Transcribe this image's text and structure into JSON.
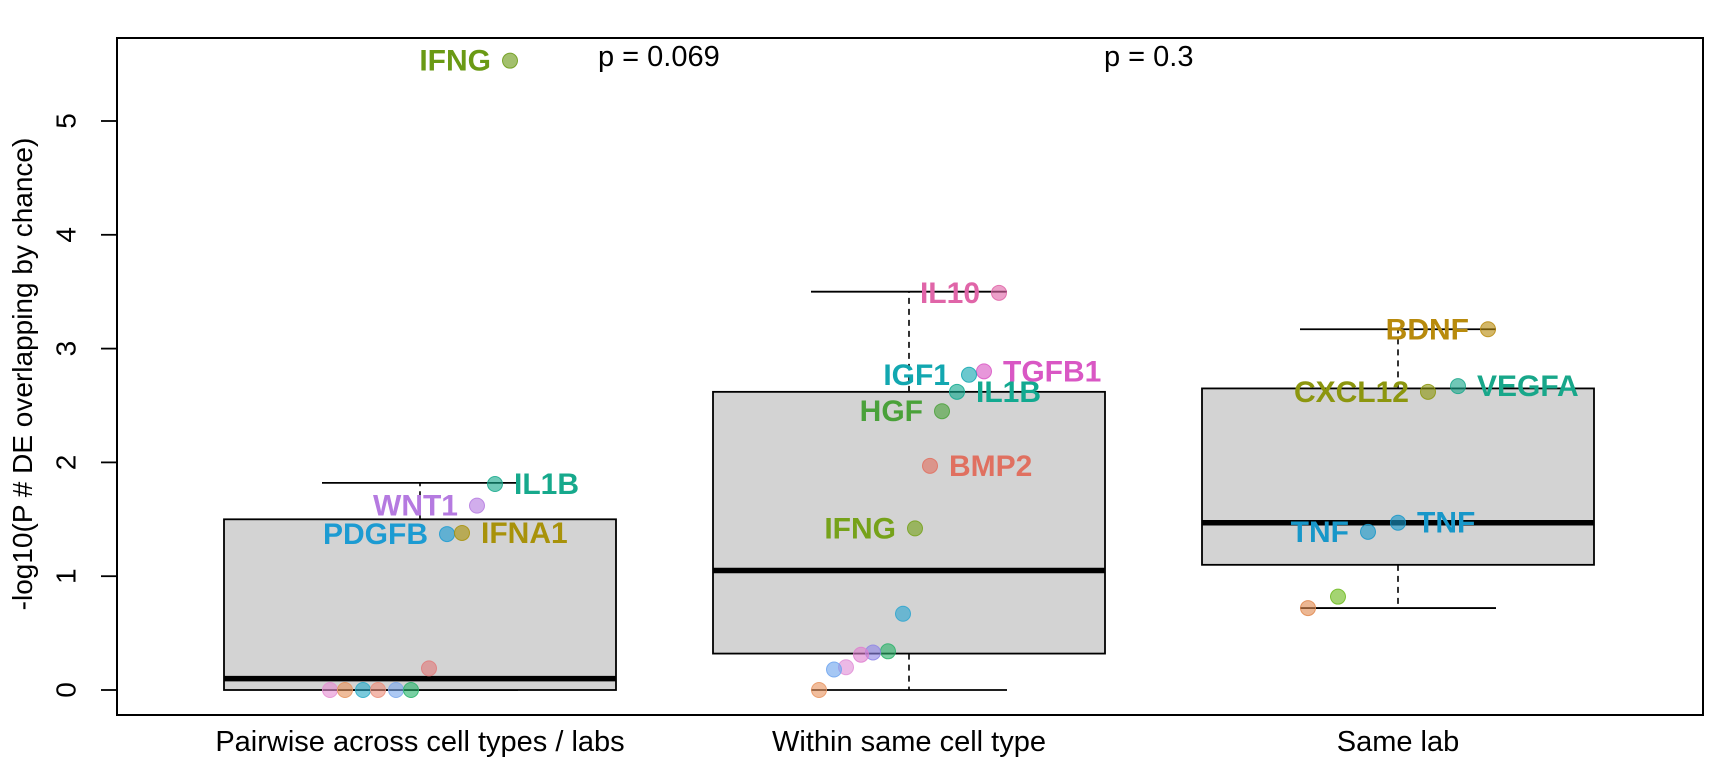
{
  "chart_data": {
    "type": "boxplot",
    "ylabel": "-log10(P # DE overlapping by chance)",
    "xlabel": "",
    "ylim": [
      -0.2,
      5.75
    ],
    "yticks": [
      "0",
      "1",
      "2",
      "3",
      "4",
      "5"
    ],
    "grid": false,
    "categories": [
      "Pairwise across cell types / labs",
      "Within same cell type",
      "Same lab"
    ],
    "boxes": [
      {
        "q1": 0.0,
        "median": 0.1,
        "q3": 1.5,
        "whisker_low": 0.0,
        "whisker_high": 1.82
      },
      {
        "q1": 0.32,
        "median": 1.05,
        "q3": 2.62,
        "whisker_low": 0.0,
        "whisker_high": 3.5
      },
      {
        "q1": 1.1,
        "median": 1.47,
        "q3": 2.65,
        "whisker_low": 0.72,
        "whisker_high": 3.17
      }
    ],
    "pvalues": [
      {
        "text": "p = 0.069",
        "between": [
          1,
          2
        ]
      },
      {
        "text": "p = 0.3",
        "between": [
          2,
          3
        ]
      }
    ],
    "points": [
      {
        "group": 1,
        "offset": 0.3,
        "y": 5.53,
        "label": "IFNG",
        "label_side": "left",
        "color": "#6a9a14"
      },
      {
        "group": 1,
        "offset": 0.25,
        "y": 1.81,
        "label": "IL1B",
        "label_side": "right",
        "color": "#16a98c"
      },
      {
        "group": 1,
        "offset": 0.19,
        "y": 1.62,
        "label": "WNT1",
        "label_side": "left",
        "color": "#b57ae0"
      },
      {
        "group": 1,
        "offset": 0.09,
        "y": 1.37,
        "label": "PDGFB",
        "label_side": "left",
        "color": "#1c9bd2"
      },
      {
        "group": 1,
        "offset": 0.14,
        "y": 1.38,
        "label": "IFNA1",
        "label_side": "right",
        "color": "#a8920a"
      },
      {
        "group": 1,
        "offset": 0.03,
        "y": 0.19,
        "label": "",
        "color": "#e07b7b"
      },
      {
        "group": 1,
        "offset": -0.3,
        "y": 0.0,
        "label": "",
        "color": "#e58ed2"
      },
      {
        "group": 1,
        "offset": -0.25,
        "y": 0.0,
        "label": "",
        "color": "#e5935c"
      },
      {
        "group": 1,
        "offset": -0.19,
        "y": 0.0,
        "label": "",
        "color": "#29aac7"
      },
      {
        "group": 1,
        "offset": -0.14,
        "y": 0.0,
        "label": "",
        "color": "#ec8e7a"
      },
      {
        "group": 1,
        "offset": -0.08,
        "y": 0.0,
        "label": "",
        "color": "#7ba8ec"
      },
      {
        "group": 1,
        "offset": -0.03,
        "y": 0.0,
        "label": "",
        "color": "#27b36a"
      },
      {
        "group": 2,
        "offset": 0.3,
        "y": 3.49,
        "label": "IL10",
        "label_side": "left",
        "color": "#e065a8"
      },
      {
        "group": 2,
        "offset": 0.25,
        "y": 2.8,
        "label": "TGFB1",
        "label_side": "right",
        "color": "#d957c4"
      },
      {
        "group": 2,
        "offset": 0.2,
        "y": 2.77,
        "label": "IGF1",
        "label_side": "left",
        "color": "#12a7b0"
      },
      {
        "group": 2,
        "offset": 0.16,
        "y": 2.62,
        "label": "IL1B",
        "label_side": "right",
        "color": "#12a990"
      },
      {
        "group": 2,
        "offset": 0.11,
        "y": 2.45,
        "label": "HGF",
        "label_side": "left",
        "color": "#4aa13a"
      },
      {
        "group": 2,
        "offset": 0.07,
        "y": 1.97,
        "label": "BMP2",
        "label_side": "right",
        "color": "#e07060"
      },
      {
        "group": 2,
        "offset": 0.02,
        "y": 1.42,
        "label": "IFNG",
        "label_side": "left",
        "color": "#76a21a"
      },
      {
        "group": 2,
        "offset": -0.02,
        "y": 0.67,
        "label": "",
        "color": "#2aa5d0"
      },
      {
        "group": 2,
        "offset": -0.07,
        "y": 0.34,
        "label": "",
        "color": "#2bb36b"
      },
      {
        "group": 2,
        "offset": -0.12,
        "y": 0.33,
        "label": "",
        "color": "#8f86e6"
      },
      {
        "group": 2,
        "offset": -0.16,
        "y": 0.31,
        "label": "",
        "color": "#df7fcf"
      },
      {
        "group": 2,
        "offset": -0.21,
        "y": 0.2,
        "label": "",
        "color": "#e08ed6"
      },
      {
        "group": 2,
        "offset": -0.25,
        "y": 0.18,
        "label": "",
        "color": "#6ea4ee"
      },
      {
        "group": 2,
        "offset": -0.3,
        "y": 0.0,
        "label": "",
        "color": "#e89460"
      },
      {
        "group": 3,
        "offset": 0.3,
        "y": 3.17,
        "label": "BDNF",
        "label_side": "left",
        "color": "#b88a0c"
      },
      {
        "group": 3,
        "offset": 0.2,
        "y": 2.67,
        "label": "VEGFA",
        "label_side": "right",
        "color": "#18a78a"
      },
      {
        "group": 3,
        "offset": 0.1,
        "y": 2.62,
        "label": "CXCL12",
        "label_side": "left",
        "color": "#8c960e"
      },
      {
        "group": 3,
        "offset": 0.0,
        "y": 1.47,
        "label": "TNF",
        "label_side": "right",
        "color": "#1897c9"
      },
      {
        "group": 3,
        "offset": -0.1,
        "y": 1.39,
        "label": "TNF",
        "label_side": "left",
        "color": "#1897c9"
      },
      {
        "group": 3,
        "offset": -0.2,
        "y": 0.82,
        "label": "",
        "color": "#6cba1c"
      },
      {
        "group": 3,
        "offset": -0.3,
        "y": 0.72,
        "label": "",
        "color": "#e08a50"
      }
    ]
  }
}
